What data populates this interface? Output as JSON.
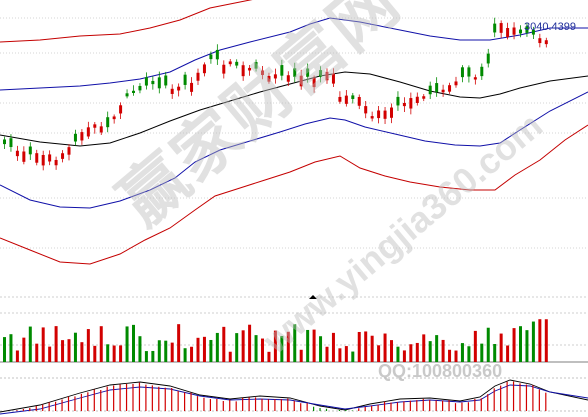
{
  "chart_data": {
    "type": "candlestick",
    "price_label": "3040.4399",
    "colors": {
      "up": "#d20000",
      "down": "#008a00",
      "outer_band": "#c40000",
      "inner_band": "#1010a8",
      "mid_line": "#000000",
      "grid": "#888888"
    },
    "watermark": {
      "main": "赢家财富网",
      "url": "www.yingjia360.com",
      "qq": "QQ:100800360"
    }
  }
}
